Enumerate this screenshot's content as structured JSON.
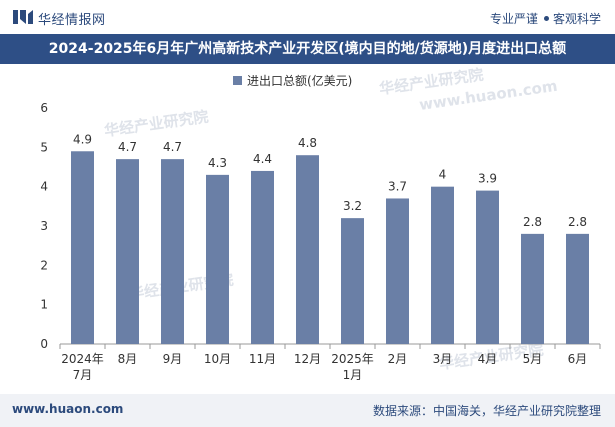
{
  "header": {
    "brand": "华经情报网",
    "tagline_left": "专业严谨",
    "tagline_right": "客观科学"
  },
  "title": "2024-2025年6月年广州高新技术产业开发区(境内目的地/货源地)月度进出口总额",
  "footer": {
    "website": "www.huaon.com",
    "source": "数据来源：中国海关，华经产业研究院整理"
  },
  "watermark": {
    "text": "华经产业研究院",
    "url": "www.huaon.com"
  },
  "colors": {
    "bar": "#6a7fa6",
    "title_bg": "#2e4f86",
    "brand": "#2c4a7c"
  },
  "chart_data": {
    "type": "bar",
    "categories": [
      "2024年\n7月",
      "8月",
      "9月",
      "10月",
      "11月",
      "12月",
      "2025年\n1月",
      "2月",
      "3月",
      "4月",
      "5月",
      "6月"
    ],
    "series": [
      {
        "name": "进出口总额(亿美元)",
        "values": [
          4.9,
          4.7,
          4.7,
          4.3,
          4.4,
          4.8,
          3.2,
          3.7,
          4,
          3.9,
          2.8,
          2.8
        ]
      }
    ],
    "ylim": [
      0,
      6
    ],
    "yticks": [
      0,
      1,
      2,
      3,
      4,
      5,
      6
    ],
    "xlabel": "",
    "ylabel": "",
    "legend": "top-center",
    "grid": false
  }
}
